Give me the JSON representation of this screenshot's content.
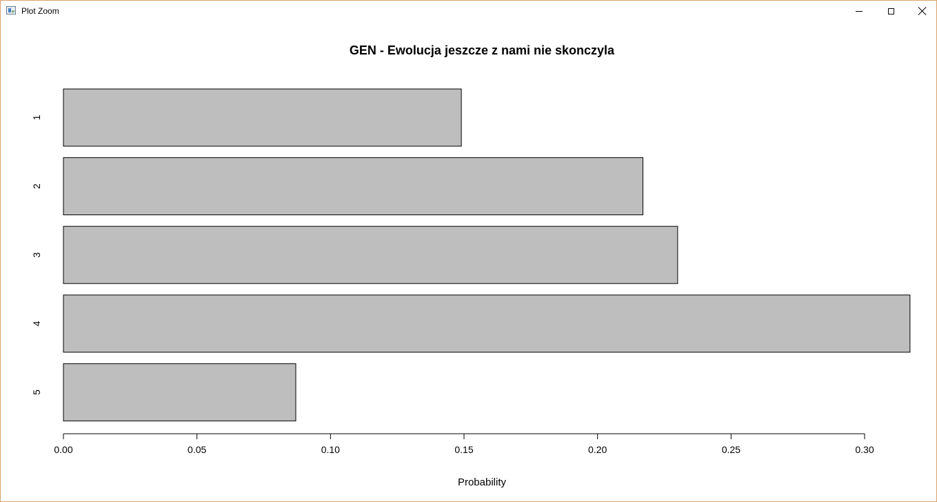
{
  "window": {
    "title": "Plot Zoom"
  },
  "chart_data": {
    "type": "bar",
    "orientation": "horizontal",
    "title": "GEN - Ewolucja jeszcze z nami nie skonczyla",
    "xlabel": "Probability",
    "ylabel": "",
    "categories": [
      "1",
      "2",
      "3",
      "4",
      "5"
    ],
    "values": [
      0.149,
      0.217,
      0.23,
      0.317,
      0.087
    ],
    "xlim": [
      0,
      0.317
    ],
    "xticks": [
      0.0,
      0.05,
      0.1,
      0.15,
      0.2,
      0.25,
      0.3
    ],
    "xtick_labels": [
      "0.00",
      "0.05",
      "0.10",
      "0.15",
      "0.20",
      "0.25",
      "0.30"
    ],
    "bar_color": "#bebebe",
    "grid": false,
    "legend": "none"
  }
}
